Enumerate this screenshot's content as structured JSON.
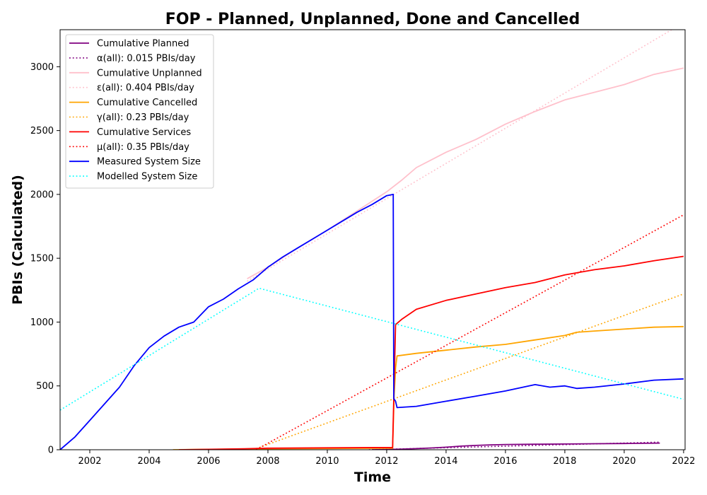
{
  "chart_data": {
    "type": "line",
    "title": "FOP - Planned, Unplanned, Done  and Cancelled",
    "xlabel": "Time",
    "ylabel": "PBIs (Calculated)",
    "xlim": [
      2001.0,
      2022.05
    ],
    "ylim": [
      0,
      3290
    ],
    "x_ticks": [
      2002,
      2004,
      2006,
      2008,
      2010,
      2012,
      2014,
      2016,
      2018,
      2020,
      2022
    ],
    "y_ticks": [
      0,
      500,
      1000,
      1500,
      2000,
      2500,
      3000
    ],
    "grid": false,
    "legend_position": "top-left",
    "series": [
      {
        "name": "Cumulative Planned",
        "color": "#800080",
        "style": "solid",
        "x": [
          2011.5,
          2012.0,
          2012.5,
          2013.0,
          2013.5,
          2014.0,
          2014.5,
          2015.0,
          2015.5,
          2016.0,
          2017.0,
          2018.0,
          2019.0,
          2020.0,
          2021.2
        ],
        "y": [
          0,
          2,
          5,
          9,
          14,
          20,
          28,
          34,
          38,
          41,
          43,
          45,
          47,
          49,
          52
        ]
      },
      {
        "name": "α(all): 0.015 PBIs/day",
        "color": "#800080",
        "style": "dotted",
        "x": [
          2011.4,
          2021.2
        ],
        "y": [
          0,
          60
        ]
      },
      {
        "name": "Cumulative Unplanned",
        "color": "#ffc0cb",
        "style": "solid",
        "x": [
          2007.3,
          2008.0,
          2009.0,
          2010.0,
          2011.0,
          2012.0,
          2012.5,
          2013.0,
          2014.0,
          2015.0,
          2016.0,
          2017.0,
          2018.0,
          2019.0,
          2020.0,
          2021.0,
          2022.0
        ],
        "y": [
          1340,
          1430,
          1580,
          1720,
          1870,
          2020,
          2110,
          2210,
          2330,
          2430,
          2550,
          2650,
          2740,
          2800,
          2860,
          2940,
          2990
        ]
      },
      {
        "name": "ε(all): 0.404 PBIs/day",
        "color": "#ffc0cb",
        "style": "dotted",
        "x": [
          2007.3,
          2021.6
        ],
        "y": [
          1320,
          3290
        ]
      },
      {
        "name": "Cumulative Cancelled",
        "color": "#ffa500",
        "style": "solid",
        "x": [
          2004.8,
          2005.5,
          2007.0,
          2008.0,
          2010.0,
          2012.2,
          2012.25,
          2012.3,
          2012.35,
          2013.0,
          2014.0,
          2015.0,
          2016.0,
          2017.0,
          2018.0,
          2018.4,
          2019.0,
          2020.0,
          2021.0,
          2022.0
        ],
        "y": [
          0,
          2,
          5,
          8,
          10,
          12,
          420,
          640,
          735,
          755,
          780,
          805,
          825,
          860,
          895,
          920,
          930,
          945,
          960,
          965
        ]
      },
      {
        "name": "γ(all): 0.23 PBIs/day",
        "color": "#ffa500",
        "style": "dotted",
        "x": [
          2007.5,
          2022.0
        ],
        "y": [
          0,
          1220
        ]
      },
      {
        "name": "Cumulative Services",
        "color": "#ff0000",
        "style": "solid",
        "x": [
          2005.0,
          2007.2,
          2008.0,
          2010.0,
          2012.2,
          2012.25,
          2012.3,
          2012.5,
          2013.0,
          2014.0,
          2015.0,
          2016.0,
          2017.0,
          2018.0,
          2019.0,
          2020.0,
          2021.0,
          2022.0
        ],
        "y": [
          0,
          8,
          12,
          15,
          18,
          500,
          980,
          1020,
          1100,
          1170,
          1220,
          1270,
          1310,
          1370,
          1410,
          1440,
          1480,
          1515
        ]
      },
      {
        "name": "μ(all): 0.35 PBIs/day",
        "color": "#ff0000",
        "style": "dotted",
        "x": [
          2007.6,
          2022.0
        ],
        "y": [
          0,
          1840
        ]
      },
      {
        "name": "Measured System Size",
        "color": "#0000ff",
        "style": "solid",
        "x": [
          2001.0,
          2001.5,
          2002.0,
          2002.5,
          2003.0,
          2003.5,
          2004.0,
          2004.5,
          2005.0,
          2005.5,
          2006.0,
          2006.5,
          2007.0,
          2007.5,
          2008.0,
          2008.5,
          2009.0,
          2009.5,
          2010.0,
          2010.5,
          2011.0,
          2011.5,
          2012.0,
          2012.22,
          2012.24,
          2012.3,
          2012.35,
          2013.0,
          2014.0,
          2015.0,
          2016.0,
          2017.0,
          2017.5,
          2018.0,
          2018.4,
          2019.0,
          2020.0,
          2021.0,
          2022.0
        ],
        "y": [
          0,
          100,
          230,
          360,
          490,
          660,
          800,
          890,
          960,
          1000,
          1120,
          1180,
          1260,
          1330,
          1430,
          1510,
          1580,
          1650,
          1720,
          1790,
          1860,
          1920,
          1990,
          2000,
          400,
          380,
          330,
          340,
          380,
          420,
          460,
          510,
          490,
          500,
          480,
          490,
          515,
          545,
          555
        ]
      },
      {
        "name": "Modelled System Size",
        "color": "#00ffff",
        "style": "dotted",
        "x": [
          2001.0,
          2007.7,
          2022.0
        ],
        "y": [
          310,
          1265,
          395
        ]
      }
    ]
  }
}
